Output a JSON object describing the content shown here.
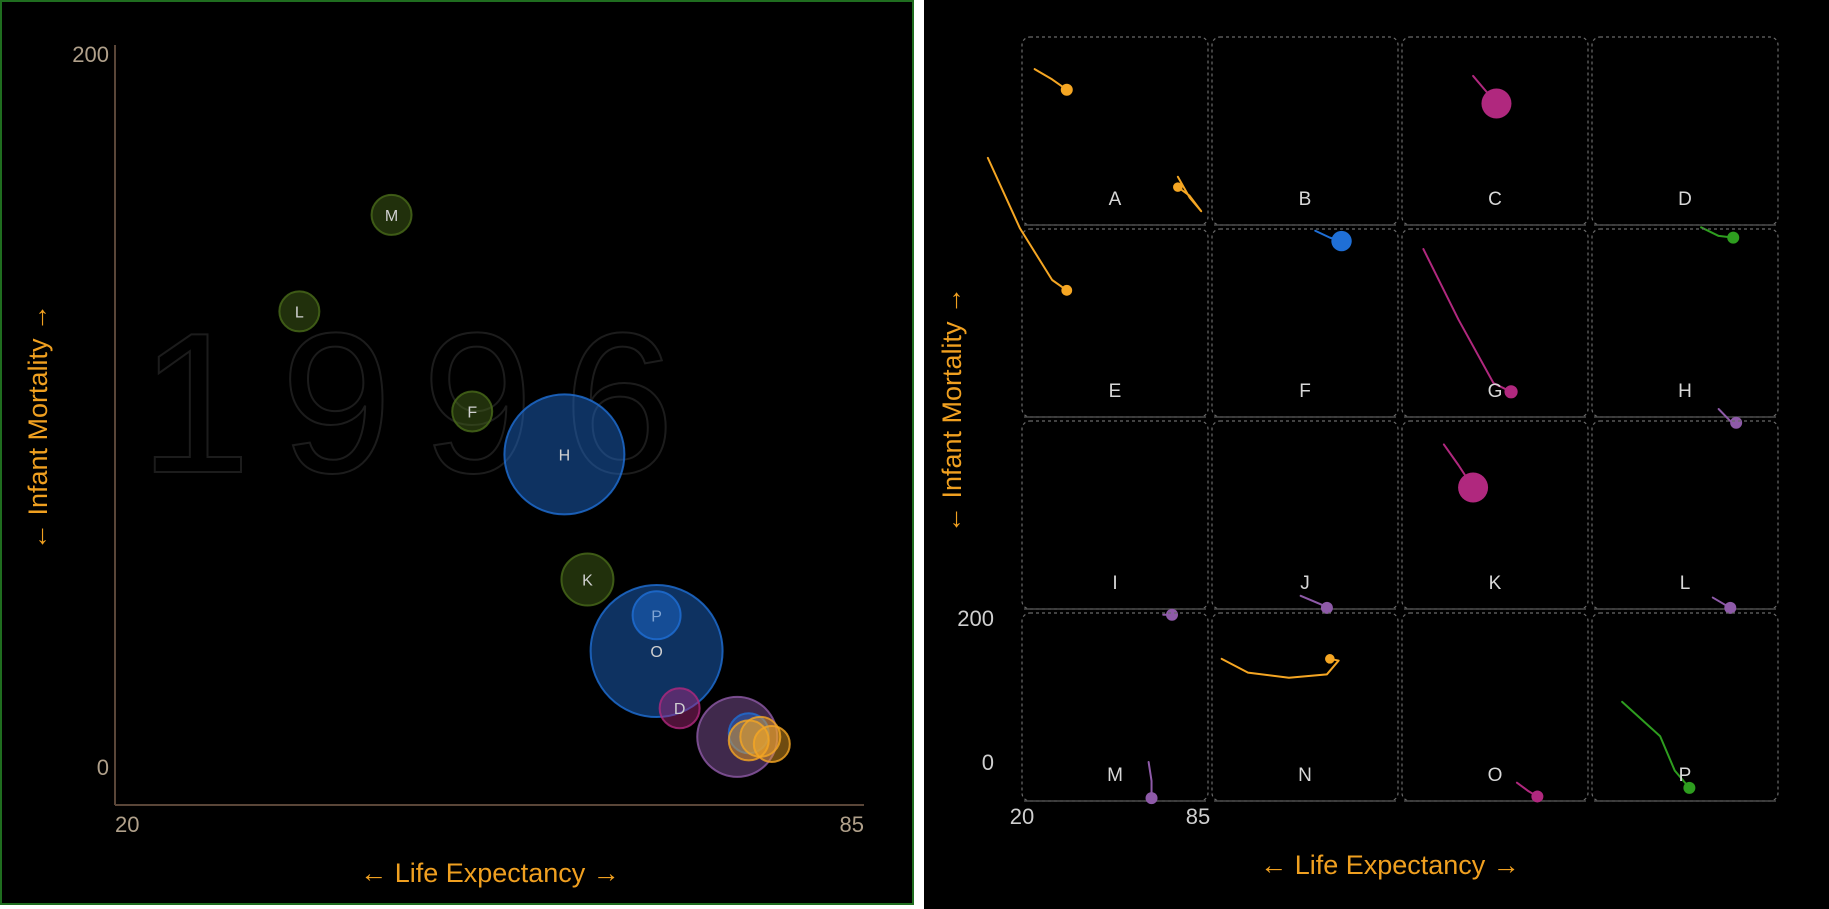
{
  "colors": {
    "background": "#000000",
    "axis_title": "#f0a020",
    "orange": "#f5a623",
    "blue": "#1f6fd6",
    "magenta": "#b0287e",
    "purple": "#8e5aa8",
    "green": "#2e9d1f",
    "olive": "#4a6b1a"
  },
  "chart_data": [
    {
      "type": "scatter",
      "year_watermark": "1996",
      "xlabel": "← Life Expectancy →",
      "ylabel": "← Infant Mortality →",
      "xlim": [
        20,
        85
      ],
      "ylim": [
        0,
        200
      ],
      "xticks": [
        "20",
        "85"
      ],
      "yticks": [
        "200",
        "0"
      ],
      "bubbles": [
        {
          "label": "M",
          "x": 44,
          "y": 155,
          "size": 1.0,
          "color": "olive"
        },
        {
          "label": "L",
          "x": 36,
          "y": 128,
          "size": 1.0,
          "color": "olive"
        },
        {
          "label": "F",
          "x": 51,
          "y": 100,
          "size": 1.0,
          "color": "olive"
        },
        {
          "label": "H",
          "x": 59,
          "y": 88,
          "size": 3.0,
          "color": "blue"
        },
        {
          "label": "K",
          "x": 61,
          "y": 53,
          "size": 1.3,
          "color": "olive"
        },
        {
          "label": "P",
          "x": 67,
          "y": 43,
          "size": 1.2,
          "color": "blue"
        },
        {
          "label": "O",
          "x": 67,
          "y": 33,
          "size": 3.3,
          "color": "blue"
        },
        {
          "label": "D",
          "x": 69,
          "y": 17,
          "size": 1.0,
          "color": "magenta"
        },
        {
          "label": "",
          "x": 74,
          "y": 9,
          "size": 2.0,
          "color": "purple"
        },
        {
          "label": "",
          "x": 75,
          "y": 10,
          "size": 1.0,
          "color": "blue"
        },
        {
          "label": "",
          "x": 75,
          "y": 8,
          "size": 1.0,
          "color": "orange"
        },
        {
          "label": "",
          "x": 76,
          "y": 9,
          "size": 1.0,
          "color": "orange"
        },
        {
          "label": "",
          "x": 77,
          "y": 7,
          "size": 0.9,
          "color": "orange"
        }
      ]
    },
    {
      "type": "line",
      "layout": "small-multiples 4x4",
      "xlabel": "← Life Expectancy →",
      "ylabel": "← Infant Mortality →",
      "xlim": [
        20,
        85
      ],
      "ylim": [
        0,
        200
      ],
      "xticks": [
        "20",
        "85"
      ],
      "yticks": [
        "200",
        "0"
      ],
      "panels": [
        {
          "label": "A",
          "color": "orange",
          "size": 1.0,
          "trail": [
            [
              25,
              172
            ],
            [
              31,
              160
            ],
            [
              36,
              148
            ]
          ]
        },
        {
          "label": "B",
          "color": "blue",
          "size": 1.7,
          "trail": [
            [
              56,
              -16
            ],
            [
              61,
              -24
            ],
            [
              65,
              -28
            ]
          ]
        },
        {
          "label": "C",
          "color": "magenta",
          "size": 2.5,
          "trail": [
            [
              45,
              164
            ],
            [
              49,
              148
            ],
            [
              53,
              132
            ]
          ]
        },
        {
          "label": "D",
          "color": "green",
          "size": 1.0,
          "trail": [
            [
              58,
              -12
            ],
            [
              64,
              -22
            ],
            [
              69,
              -24
            ]
          ]
        },
        {
          "label": "E",
          "color": "orange",
          "size": 0.9,
          "trail": [
            [
              9,
              292
            ],
            [
              20,
              210
            ],
            [
              31,
              150
            ],
            [
              36,
              138
            ]
          ]
        },
        {
          "label": "F",
          "color": "orange",
          "size": 0.8,
          "trail": [
            [
              9,
              270
            ],
            [
              13,
              246
            ],
            [
              17,
              230
            ],
            [
              13,
              248
            ],
            [
              9,
              258
            ]
          ]
        },
        {
          "label": "G",
          "color": "magenta",
          "size": 1.1,
          "trail": [
            [
              28,
              186
            ],
            [
              40,
              104
            ],
            [
              52,
              30
            ],
            [
              58,
              20
            ]
          ]
        },
        {
          "label": "H",
          "color": "purple",
          "size": 1.0,
          "trail": [
            [
              64,
              0
            ],
            [
              68,
              -14
            ],
            [
              70,
              -16
            ]
          ]
        },
        {
          "label": "I",
          "color": "purple",
          "size": 1.0,
          "trail": [
            [
              69,
              -16
            ],
            [
              72,
              -16
            ]
          ]
        },
        {
          "label": "J",
          "color": "purple",
          "size": 1.0,
          "trail": [
            [
              51,
              6
            ],
            [
              58,
              -4
            ],
            [
              60,
              -8
            ]
          ]
        },
        {
          "label": "K",
          "color": "magenta",
          "size": 2.5,
          "trail": [
            [
              35,
              182
            ],
            [
              40,
              158
            ],
            [
              45,
              132
            ]
          ]
        },
        {
          "label": "L",
          "color": "purple",
          "size": 1.0,
          "trail": [
            [
              62,
              4
            ],
            [
              66,
              -4
            ],
            [
              68,
              -8
            ]
          ]
        },
        {
          "label": "M",
          "color": "purple",
          "size": 1.0,
          "trail": [
            [
              64,
              36
            ],
            [
              65,
              14
            ],
            [
              65,
              -6
            ]
          ]
        },
        {
          "label": "N",
          "color": "orange",
          "size": 0.8,
          "trail": [
            [
              24,
              156
            ],
            [
              33,
              140
            ],
            [
              47,
              134
            ],
            [
              60,
              138
            ],
            [
              64,
              154
            ],
            [
              61,
              156
            ]
          ]
        },
        {
          "label": "O",
          "color": "magenta",
          "size": 1.0,
          "trail": [
            [
              60,
              12
            ],
            [
              64,
              2
            ],
            [
              67,
              -4
            ]
          ]
        },
        {
          "label": "P",
          "color": "green",
          "size": 1.0,
          "trail": [
            [
              31,
              106
            ],
            [
              44,
              66
            ],
            [
              49,
              26
            ],
            [
              54,
              6
            ]
          ]
        }
      ]
    }
  ]
}
